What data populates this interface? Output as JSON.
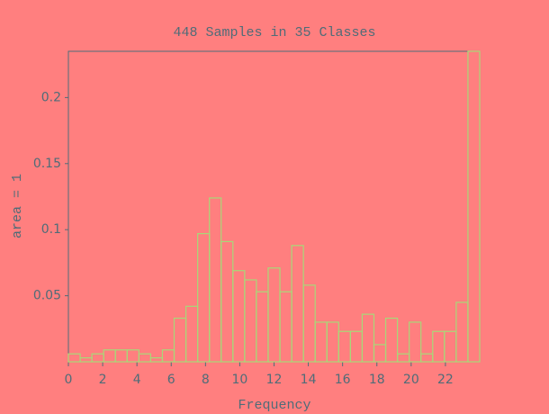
{
  "chart_data": {
    "type": "histogram",
    "title": "448 Samples in 35 Classes",
    "x_label": "Frequency",
    "y_label": "area = 1",
    "bins": [
      0,
      0.686,
      1.371,
      2.057,
      2.743,
      3.429,
      4.114,
      4.8,
      5.486,
      6.171,
      6.857,
      7.543,
      8.229,
      8.914,
      9.6,
      10.286,
      10.971,
      11.657,
      12.343,
      13.029,
      13.714,
      14.4,
      15.086,
      15.771,
      16.457,
      17.143,
      17.829,
      18.514,
      19.2,
      19.886,
      20.571,
      21.257,
      21.943,
      22.629,
      23.314,
      24
    ],
    "values": [
      0.006,
      0.003,
      0.006,
      0.009,
      0.009,
      0.009,
      0.006,
      0.003,
      0.009,
      0.033,
      0.042,
      0.097,
      0.124,
      0.091,
      0.069,
      0.062,
      0.053,
      0.071,
      0.053,
      0.088,
      0.058,
      0.03,
      0.03,
      0.023,
      0.023,
      0.036,
      0.013,
      0.033,
      0.006,
      0.03,
      0.006,
      0.023,
      0.023,
      0.045,
      0.235
    ],
    "color": "#a8d878",
    "xlim": [
      0,
      24
    ],
    "xticks": [
      0,
      2,
      4,
      6,
      8,
      10,
      12,
      14,
      16,
      18,
      20,
      22
    ],
    "ylim": [
      0,
      0.235
    ],
    "yticks": [
      0.05,
      0.1,
      0.15,
      0.2
    ]
  }
}
